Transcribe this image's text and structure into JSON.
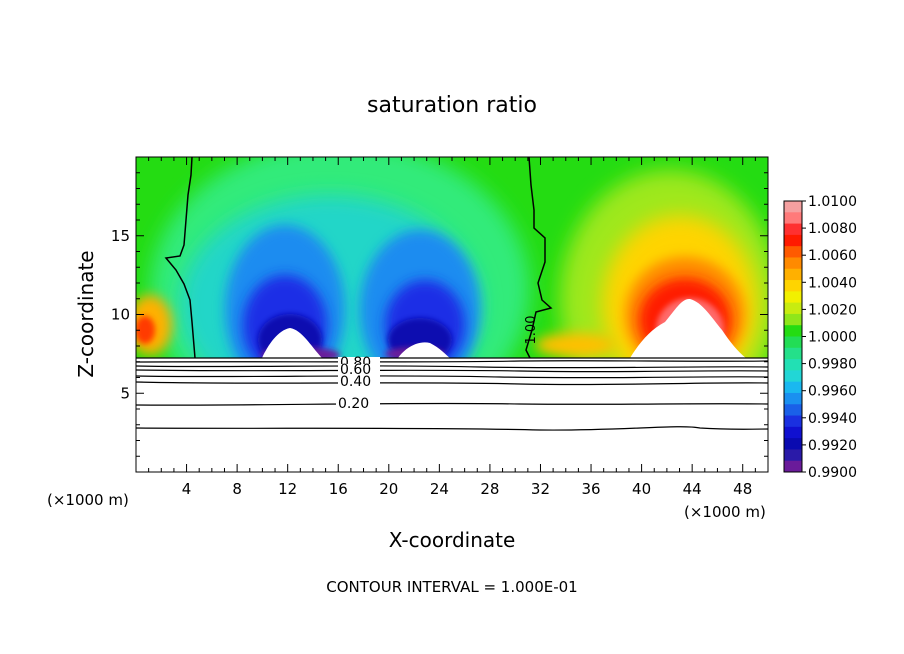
{
  "chart_data": {
    "type": "heatmap",
    "title": "saturation ratio",
    "xlabel": "X-coordinate",
    "ylabel": "Z-coordinate",
    "x_unit_label": "(×1000 m)",
    "footer": "CONTOUR INTERVAL = 1.000E-01",
    "xlim": [
      0,
      50
    ],
    "ylim": [
      0,
      20
    ],
    "x_ticks": [
      4,
      8,
      12,
      16,
      20,
      24,
      28,
      32,
      36,
      40,
      44,
      48
    ],
    "y_ticks": [
      5,
      10,
      15
    ],
    "colorbar": {
      "levels": [
        "1.0100",
        "1.0080",
        "1.0060",
        "1.0040",
        "1.0020",
        "1.0000",
        "0.9980",
        "0.9960",
        "0.9940",
        "0.9920",
        "0.9900"
      ],
      "min": 0.99,
      "max": 1.01
    },
    "contour_labels": [
      "1.00",
      "0.80",
      "0.60",
      "0.40",
      "0.20"
    ],
    "colors": {
      "green": "#22dd11",
      "red": "#ff1a00",
      "blue": "#0000dd",
      "purple": "#6a1b9a"
    }
  }
}
